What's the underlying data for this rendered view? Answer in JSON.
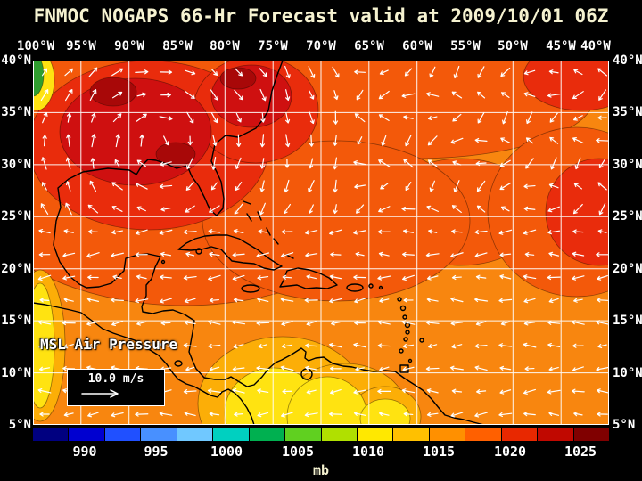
{
  "title": "FNMOC NOGAPS 66-Hr Forecast valid at 2009/10/01 06Z",
  "map": {
    "field_label": "MSL Air Pressure",
    "wind_scale_label": "10.0 m/s",
    "lon_labels": [
      "100°W",
      "95°W",
      "90°W",
      "85°W",
      "80°W",
      "75°W",
      "70°W",
      "65°W",
      "60°W",
      "55°W",
      "50°W",
      "45°W",
      "40°W"
    ],
    "lat_labels": [
      "40°N",
      "35°N",
      "30°N",
      "25°N",
      "20°N",
      "15°N",
      "10°N",
      "5°N"
    ]
  },
  "colorbar": {
    "unit": "mb",
    "tick_labels": [
      "990",
      "995",
      "1000",
      "1005",
      "1010",
      "1015",
      "1020",
      "1025"
    ],
    "segment_colors": [
      "#000080",
      "#0000d0",
      "#2050ff",
      "#4890ff",
      "#70c8ff",
      "#00d0c0",
      "#00b050",
      "#60d020",
      "#b0e000",
      "#ffe800",
      "#ffc000",
      "#ff9000",
      "#ff6000",
      "#e82800",
      "#c00800",
      "#800000"
    ]
  },
  "colors": {
    "background": "#000000",
    "tick_text": "#ffffff",
    "title_text": "#f5f2d0"
  }
}
